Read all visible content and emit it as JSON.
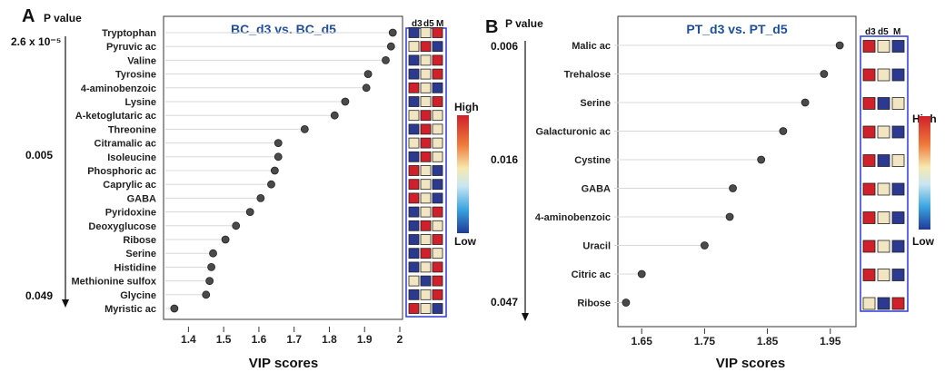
{
  "palette": {
    "red": "#d0202a",
    "cream": "#f2e6c2",
    "blue": "#2b3990",
    "dot": "#4a4a4a",
    "frame_blue": "#2b3bd4",
    "grid": "#d8d8d8"
  },
  "legend": {
    "high": "High",
    "low": "Low"
  },
  "chart_data": [
    {
      "panel": "A",
      "type": "scatter",
      "title": "BC_d3 vs. BC_d5",
      "xlabel": "VIP scores",
      "pvalue_label": "P value",
      "pvalue_ticks": [
        "2.6 x 10⁻⁵",
        "0.005",
        "0.049"
      ],
      "xlim": [
        1.35,
        2.0
      ],
      "xticks": [
        "1.4",
        "1.5",
        "1.6",
        "1.7",
        "1.8",
        "1.9",
        "2"
      ],
      "heatmap_headers": [
        "d3",
        "d5",
        "M"
      ],
      "categories": [
        "Tryptophan",
        "Pyruvic ac",
        "Valine",
        "Tyrosine",
        "4-aminobenzoic",
        "Lysine",
        "A-ketoglutaric ac",
        "Threonine",
        "Citramalic ac",
        "Isoleucine",
        "Phosphoric ac",
        "Caprylic ac",
        "GABA",
        "Pyridoxine",
        "Deoxyglucose",
        "Ribose",
        "Serine",
        "Histidine",
        "Methionine sulfox",
        "Glycine",
        "Myristic ac"
      ],
      "values": [
        1.98,
        1.975,
        1.96,
        1.91,
        1.905,
        1.845,
        1.815,
        1.73,
        1.655,
        1.655,
        1.645,
        1.635,
        1.605,
        1.575,
        1.535,
        1.505,
        1.47,
        1.465,
        1.46,
        1.45,
        1.36
      ],
      "heatmap": [
        [
          "blue",
          "cream",
          "red"
        ],
        [
          "cream",
          "red",
          "blue"
        ],
        [
          "blue",
          "cream",
          "red"
        ],
        [
          "blue",
          "cream",
          "red"
        ],
        [
          "red",
          "cream",
          "blue"
        ],
        [
          "blue",
          "cream",
          "red"
        ],
        [
          "cream",
          "red",
          "cream"
        ],
        [
          "blue",
          "red",
          "cream"
        ],
        [
          "cream",
          "red",
          "cream"
        ],
        [
          "blue",
          "red",
          "cream"
        ],
        [
          "red",
          "cream",
          "blue"
        ],
        [
          "red",
          "cream",
          "blue"
        ],
        [
          "red",
          "cream",
          "blue"
        ],
        [
          "blue",
          "cream",
          "red"
        ],
        [
          "blue",
          "red",
          "cream"
        ],
        [
          "blue",
          "cream",
          "red"
        ],
        [
          "blue",
          "red",
          "cream"
        ],
        [
          "blue",
          "cream",
          "red"
        ],
        [
          "cream",
          "blue",
          "red"
        ],
        [
          "blue",
          "cream",
          "red"
        ],
        [
          "red",
          "cream",
          "blue"
        ]
      ]
    },
    {
      "panel": "B",
      "type": "scatter",
      "title": "PT_d3 vs. PT_d5",
      "xlabel": "VIP scores",
      "pvalue_label": "P value",
      "pvalue_ticks": [
        "0.006",
        "0.016",
        "0.047"
      ],
      "xlim": [
        1.615,
        1.985
      ],
      "xticks": [
        "1.65",
        "1.75",
        "1.85",
        "1.95"
      ],
      "heatmap_headers": [
        "d3",
        "d5",
        "M"
      ],
      "categories": [
        "Malic ac",
        "Trehalose",
        "Serine",
        "Galacturonic ac",
        "Cystine",
        "GABA",
        "4-aminobenzoic",
        "Uracil",
        "Citric ac",
        "Ribose"
      ],
      "values": [
        1.965,
        1.94,
        1.91,
        1.875,
        1.84,
        1.795,
        1.79,
        1.75,
        1.65,
        1.625
      ],
      "heatmap": [
        [
          "red",
          "cream",
          "blue"
        ],
        [
          "red",
          "cream",
          "blue"
        ],
        [
          "red",
          "blue",
          "cream"
        ],
        [
          "red",
          "cream",
          "blue"
        ],
        [
          "red",
          "blue",
          "cream"
        ],
        [
          "red",
          "cream",
          "blue"
        ],
        [
          "red",
          "cream",
          "blue"
        ],
        [
          "red",
          "cream",
          "blue"
        ],
        [
          "red",
          "cream",
          "blue"
        ],
        [
          "cream",
          "blue",
          "red"
        ]
      ]
    }
  ]
}
